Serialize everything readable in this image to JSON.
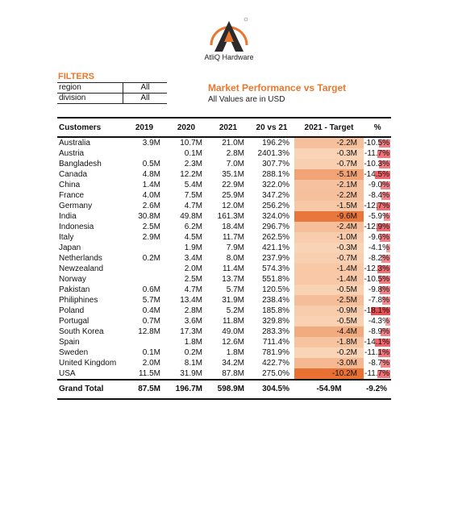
{
  "brand": {
    "name": "AtliQ Hardware",
    "colors": {
      "accent": "#e9772e",
      "dark": "#2b2b2b"
    }
  },
  "filters": {
    "title": "FILTERS",
    "rows": [
      {
        "label": "region",
        "value": "All"
      },
      {
        "label": "division",
        "value": "All"
      }
    ]
  },
  "report": {
    "title": "Market Performance vs Target",
    "subtitle": "All Values are in USD"
  },
  "table": {
    "headers": [
      "Customers",
      "2019",
      "2020",
      "2021",
      "20 vs 21",
      "2021 - Target",
      "%"
    ],
    "rows": [
      {
        "c": "Australia",
        "y19": "3.9M",
        "y20": "10.7M",
        "y21": "21.0M",
        "vs": "196.2%",
        "tgt": "-2.2M",
        "pct": "-10.5%",
        "tv": -2.2,
        "pv": -10.5
      },
      {
        "c": "Austria",
        "y19": "",
        "y20": "0.1M",
        "y21": "2.8M",
        "vs": "2401.3%",
        "tgt": "-0.3M",
        "pct": "-11.7%",
        "tv": -0.3,
        "pv": -11.7
      },
      {
        "c": "Bangladesh",
        "y19": "0.5M",
        "y20": "2.3M",
        "y21": "7.0M",
        "vs": "307.7%",
        "tgt": "-0.7M",
        "pct": "-10.3%",
        "tv": -0.7,
        "pv": -10.3
      },
      {
        "c": "Canada",
        "y19": "4.8M",
        "y20": "12.2M",
        "y21": "35.1M",
        "vs": "288.1%",
        "tgt": "-5.1M",
        "pct": "-14.5%",
        "tv": -5.1,
        "pv": -14.5
      },
      {
        "c": "China",
        "y19": "1.4M",
        "y20": "5.4M",
        "y21": "22.9M",
        "vs": "322.0%",
        "tgt": "-2.1M",
        "pct": "-9.0%",
        "tv": -2.1,
        "pv": -9.0
      },
      {
        "c": "France",
        "y19": "4.0M",
        "y20": "7.5M",
        "y21": "25.9M",
        "vs": "347.2%",
        "tgt": "-2.2M",
        "pct": "-8.4%",
        "tv": -2.2,
        "pv": -8.4
      },
      {
        "c": "Germany",
        "y19": "2.6M",
        "y20": "4.7M",
        "y21": "12.0M",
        "vs": "256.2%",
        "tgt": "-1.5M",
        "pct": "-12.7%",
        "tv": -1.5,
        "pv": -12.7
      },
      {
        "c": "India",
        "y19": "30.8M",
        "y20": "49.8M",
        "y21": "161.3M",
        "vs": "324.0%",
        "tgt": "-9.6M",
        "pct": "-5.9%",
        "tv": -9.6,
        "pv": -5.9
      },
      {
        "c": "Indonesia",
        "y19": "2.5M",
        "y20": "6.2M",
        "y21": "18.4M",
        "vs": "296.7%",
        "tgt": "-2.4M",
        "pct": "-12.9%",
        "tv": -2.4,
        "pv": -12.9
      },
      {
        "c": "Italy",
        "y19": "2.9M",
        "y20": "4.5M",
        "y21": "11.7M",
        "vs": "262.5%",
        "tgt": "-1.0M",
        "pct": "-9.6%",
        "tv": -1.0,
        "pv": -9.6
      },
      {
        "c": "Japan",
        "y19": "",
        "y20": "1.9M",
        "y21": "7.9M",
        "vs": "421.1%",
        "tgt": "-0.3M",
        "pct": "-4.1%",
        "tv": -0.3,
        "pv": -4.1
      },
      {
        "c": "Netherlands",
        "y19": "0.2M",
        "y20": "3.4M",
        "y21": "8.0M",
        "vs": "237.9%",
        "tgt": "-0.7M",
        "pct": "-8.2%",
        "tv": -0.7,
        "pv": -8.2
      },
      {
        "c": "Newzealand",
        "y19": "",
        "y20": "2.0M",
        "y21": "11.4M",
        "vs": "574.3%",
        "tgt": "-1.4M",
        "pct": "-12.3%",
        "tv": -1.4,
        "pv": -12.3
      },
      {
        "c": "Norway",
        "y19": "",
        "y20": "2.5M",
        "y21": "13.7M",
        "vs": "551.8%",
        "tgt": "-1.4M",
        "pct": "-10.5%",
        "tv": -1.4,
        "pv": -10.5
      },
      {
        "c": "Pakistan",
        "y19": "0.6M",
        "y20": "4.7M",
        "y21": "5.7M",
        "vs": "120.5%",
        "tgt": "-0.5M",
        "pct": "-9.8%",
        "tv": -0.5,
        "pv": -9.8
      },
      {
        "c": "Philiphines",
        "y19": "5.7M",
        "y20": "13.4M",
        "y21": "31.9M",
        "vs": "238.4%",
        "tgt": "-2.5M",
        "pct": "-7.8%",
        "tv": -2.5,
        "pv": -7.8
      },
      {
        "c": "Poland",
        "y19": "0.4M",
        "y20": "2.8M",
        "y21": "5.2M",
        "vs": "185.8%",
        "tgt": "-0.9M",
        "pct": "-18.1%",
        "tv": -0.9,
        "pv": -18.1
      },
      {
        "c": "Portugal",
        "y19": "0.7M",
        "y20": "3.6M",
        "y21": "11.8M",
        "vs": "329.8%",
        "tgt": "-0.5M",
        "pct": "-4.3%",
        "tv": -0.5,
        "pv": -4.3
      },
      {
        "c": "South Korea",
        "y19": "12.8M",
        "y20": "17.3M",
        "y21": "49.0M",
        "vs": "283.3%",
        "tgt": "-4.4M",
        "pct": "-8.9%",
        "tv": -4.4,
        "pv": -8.9
      },
      {
        "c": "Spain",
        "y19": "",
        "y20": "1.8M",
        "y21": "12.6M",
        "vs": "711.4%",
        "tgt": "-1.8M",
        "pct": "-14.1%",
        "tv": -1.8,
        "pv": -14.1
      },
      {
        "c": "Sweden",
        "y19": "0.1M",
        "y20": "0.2M",
        "y21": "1.8M",
        "vs": "781.9%",
        "tgt": "-0.2M",
        "pct": "-11.1%",
        "tv": -0.2,
        "pv": -11.1
      },
      {
        "c": "United Kingdom",
        "y19": "2.0M",
        "y20": "8.1M",
        "y21": "34.2M",
        "vs": "422.7%",
        "tgt": "-3.0M",
        "pct": "-8.7%",
        "tv": -3.0,
        "pv": -8.7
      },
      {
        "c": "USA",
        "y19": "11.5M",
        "y20": "31.9M",
        "y21": "87.8M",
        "vs": "275.0%",
        "tgt": "-10.2M",
        "pct": "-11.7%",
        "tv": -10.2,
        "pv": -11.7
      }
    ],
    "total": {
      "c": "Grand Total",
      "y19": "87.5M",
      "y20": "196.7M",
      "y21": "598.9M",
      "vs": "304.5%",
      "tgt": "-54.9M",
      "pct": "-9.2%"
    }
  }
}
